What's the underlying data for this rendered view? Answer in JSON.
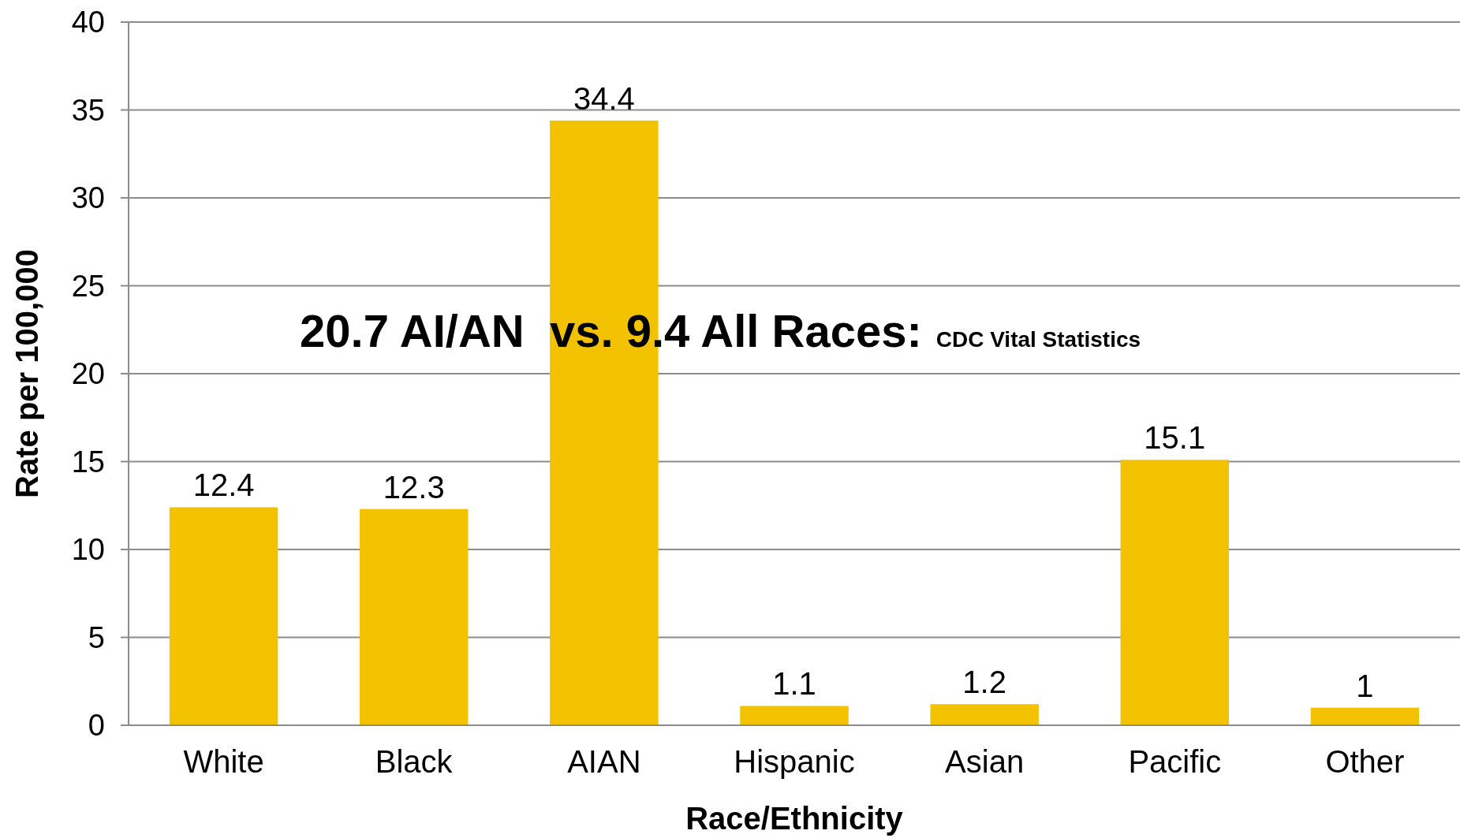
{
  "chart_data": {
    "type": "bar",
    "xlabel": "Race/Ethnicity",
    "ylabel": "Rate per 100,000",
    "categories": [
      "White",
      "Black",
      "AIAN",
      "Hispanic",
      "Asian",
      "Pacific",
      "Other"
    ],
    "values": [
      12.4,
      12.3,
      34.4,
      1.1,
      1.2,
      15.1,
      1
    ],
    "color": "#f2c200",
    "ylim": [
      0,
      40
    ],
    "yticks": [
      0,
      5,
      10,
      15,
      20,
      25,
      30,
      35,
      40
    ],
    "grid": "y",
    "data_labels": true,
    "annotations": [
      "20.7 AI/AN  vs. 9.4 All Races:",
      "CDC Vital Statistics"
    ]
  }
}
